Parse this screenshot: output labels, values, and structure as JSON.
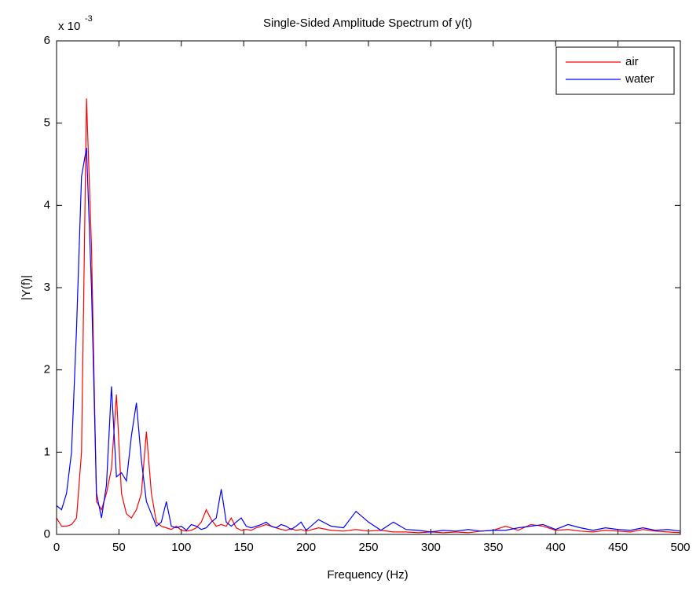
{
  "chart_data": {
    "type": "line",
    "title": "Single-Sided Amplitude Spectrum of y(t)",
    "x_label": "Frequency (Hz)",
    "y_label": "|Y(f)|",
    "y_scale_label": {
      "base": "x 10",
      "exponent": "-3"
    },
    "legend": "upper right",
    "xlim": [
      0,
      500
    ],
    "xticks": [
      0,
      50,
      100,
      150,
      200,
      250,
      300,
      350,
      400,
      450,
      500
    ],
    "ylim": [
      0,
      6
    ],
    "yticks": [
      0,
      1,
      2,
      3,
      4,
      5,
      6
    ],
    "x": [
      0,
      4,
      8,
      12,
      16,
      20,
      24,
      28,
      32,
      36,
      40,
      44,
      48,
      52,
      56,
      60,
      64,
      68,
      72,
      76,
      80,
      84,
      88,
      92,
      96,
      100,
      104,
      108,
      112,
      116,
      120,
      124,
      128,
      132,
      136,
      140,
      144,
      148,
      152,
      156,
      160,
      164,
      168,
      172,
      176,
      180,
      184,
      188,
      192,
      196,
      200,
      210,
      220,
      230,
      240,
      250,
      260,
      270,
      280,
      290,
      300,
      310,
      320,
      330,
      340,
      350,
      360,
      370,
      380,
      390,
      400,
      410,
      420,
      430,
      440,
      450,
      460,
      470,
      480,
      490,
      500
    ],
    "series": [
      {
        "name": "air",
        "color": "#ff0000",
        "values": [
          0.2,
          0.1,
          0.1,
          0.12,
          0.2,
          1.0,
          5.3,
          3.5,
          0.4,
          0.3,
          0.5,
          0.8,
          1.7,
          0.5,
          0.25,
          0.2,
          0.3,
          0.5,
          1.25,
          0.5,
          0.15,
          0.1,
          0.08,
          0.06,
          0.1,
          0.05,
          0.04,
          0.05,
          0.08,
          0.15,
          0.3,
          0.18,
          0.1,
          0.12,
          0.1,
          0.2,
          0.08,
          0.05,
          0.06,
          0.05,
          0.08,
          0.1,
          0.12,
          0.1,
          0.08,
          0.06,
          0.05,
          0.07,
          0.05,
          0.06,
          0.04,
          0.08,
          0.05,
          0.04,
          0.06,
          0.04,
          0.05,
          0.03,
          0.03,
          0.02,
          0.03,
          0.02,
          0.03,
          0.02,
          0.04,
          0.05,
          0.1,
          0.05,
          0.12,
          0.1,
          0.05,
          0.06,
          0.04,
          0.03,
          0.05,
          0.04,
          0.03,
          0.06,
          0.04,
          0.03,
          0.02
        ]
      },
      {
        "name": "water",
        "color": "#0000ff",
        "values": [
          0.35,
          0.3,
          0.5,
          1.0,
          2.5,
          4.35,
          4.7,
          3.0,
          0.5,
          0.2,
          0.6,
          1.8,
          0.7,
          0.75,
          0.65,
          1.2,
          1.6,
          0.9,
          0.4,
          0.25,
          0.1,
          0.15,
          0.4,
          0.1,
          0.08,
          0.1,
          0.05,
          0.12,
          0.1,
          0.06,
          0.08,
          0.15,
          0.2,
          0.55,
          0.15,
          0.1,
          0.15,
          0.2,
          0.1,
          0.08,
          0.1,
          0.12,
          0.15,
          0.1,
          0.08,
          0.12,
          0.1,
          0.06,
          0.1,
          0.15,
          0.05,
          0.18,
          0.1,
          0.08,
          0.28,
          0.15,
          0.05,
          0.15,
          0.06,
          0.05,
          0.03,
          0.05,
          0.04,
          0.06,
          0.04,
          0.05,
          0.05,
          0.08,
          0.1,
          0.12,
          0.06,
          0.12,
          0.08,
          0.05,
          0.08,
          0.06,
          0.05,
          0.08,
          0.05,
          0.06,
          0.04
        ]
      }
    ]
  }
}
